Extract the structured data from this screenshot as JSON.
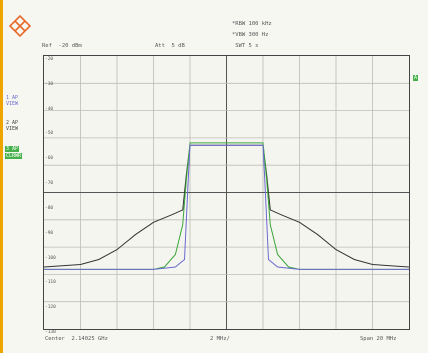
{
  "header": {
    "ref_level": "Ref  -20 dBm",
    "att": "Att  5 dB",
    "rbw": "*RBW 100 kHz",
    "vbw": "*VBW 300 Hz",
    "swt": " SWT 5 s"
  },
  "side": {
    "trace1_label": "1 AP",
    "trace1_mode": "VIEW",
    "trace2_label": "2 AP",
    "trace2_mode": "VIEW",
    "trace3_label": "3 AP",
    "trace3_mode": "CLRWR",
    "right_badge": "A",
    "colors": {
      "trace1": "#6a6ad0",
      "trace3_badge": "#46b14a"
    }
  },
  "y_ticks": [
    "-20",
    "-30",
    "-40",
    "-50",
    "-60",
    "-70",
    "-80",
    "-90",
    "-100",
    "-110",
    "-120",
    "-130"
  ],
  "footer": {
    "center": "Center  2.14025 GHz",
    "per_div": "2 MHz/",
    "span": "Span 20 MHz"
  },
  "chart_data": {
    "type": "line",
    "x_divisions": 10,
    "y_divisions": 10,
    "grid": true,
    "series": [
      {
        "color": "#333333",
        "points": [
          [
            0,
            -105
          ],
          [
            1,
            -104
          ],
          [
            1.5,
            -102
          ],
          [
            2,
            -98
          ],
          [
            2.5,
            -92
          ],
          [
            3,
            -87
          ],
          [
            3.5,
            -84
          ],
          [
            3.8,
            -82
          ],
          [
            3.9,
            -68
          ],
          [
            4,
            -56
          ],
          [
            5,
            -56
          ],
          [
            6,
            -56
          ],
          [
            6.1,
            -68
          ],
          [
            6.2,
            -82
          ],
          [
            6.5,
            -84
          ],
          [
            7,
            -87
          ],
          [
            7.5,
            -92
          ],
          [
            8,
            -98
          ],
          [
            8.5,
            -102
          ],
          [
            9,
            -104
          ],
          [
            10,
            -105
          ]
        ]
      },
      {
        "color": "#3aa63a",
        "points": [
          [
            0,
            -106
          ],
          [
            2,
            -106
          ],
          [
            3,
            -106
          ],
          [
            3.3,
            -105
          ],
          [
            3.6,
            -100
          ],
          [
            3.8,
            -88
          ],
          [
            3.9,
            -70
          ],
          [
            4,
            -55
          ],
          [
            5,
            -55
          ],
          [
            6,
            -55
          ],
          [
            6.1,
            -70
          ],
          [
            6.2,
            -88
          ],
          [
            6.4,
            -100
          ],
          [
            6.7,
            -105
          ],
          [
            7,
            -106
          ],
          [
            8,
            -106
          ],
          [
            10,
            -106
          ]
        ]
      },
      {
        "color": "#6a6ad0",
        "points": [
          [
            0,
            -106
          ],
          [
            3,
            -106
          ],
          [
            3.6,
            -105
          ],
          [
            3.85,
            -102
          ],
          [
            3.95,
            -70
          ],
          [
            4,
            -56
          ],
          [
            6,
            -56
          ],
          [
            6.05,
            -70
          ],
          [
            6.15,
            -102
          ],
          [
            6.4,
            -105
          ],
          [
            7,
            -106
          ],
          [
            10,
            -106
          ]
        ]
      }
    ]
  }
}
